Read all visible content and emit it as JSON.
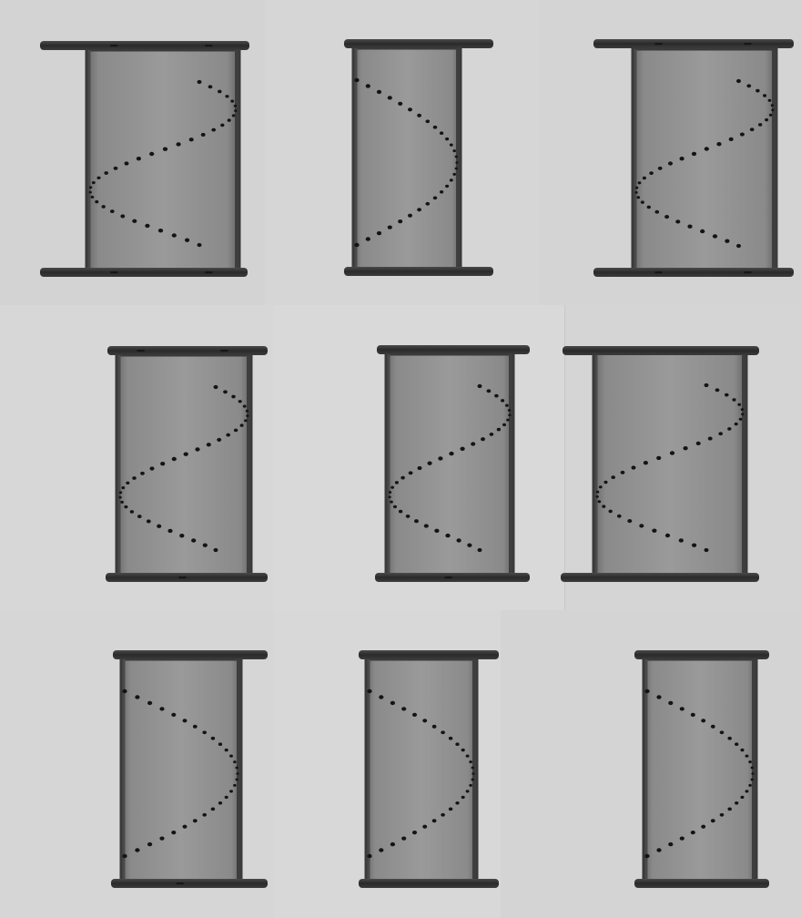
{
  "image": {
    "kind": "radiograph-montage",
    "background_color": "#d5d5d5",
    "specimens": [
      {
        "id": "a",
        "row": 1,
        "column": 1,
        "helix_turns": 1.0,
        "top_marker_dots": 2,
        "bottom_marker_dots": 2,
        "helix_start": "top-right",
        "apex_side": "right"
      },
      {
        "id": "b",
        "row": 1,
        "column": 2,
        "helix_turns": 0.5,
        "top_marker_dots": 0,
        "bottom_marker_dots": 0,
        "helix_start": "top-left",
        "apex_side": "right"
      },
      {
        "id": "c",
        "row": 1,
        "column": 3,
        "helix_turns": 1.0,
        "top_marker_dots": 2,
        "bottom_marker_dots": 2,
        "helix_start": "top-right",
        "apex_side": "right"
      },
      {
        "id": "d",
        "row": 2,
        "column": 1,
        "helix_turns": 1.0,
        "top_marker_dots": 2,
        "bottom_marker_dots": 1,
        "helix_start": "top-right",
        "apex_side": "right"
      },
      {
        "id": "e",
        "row": 2,
        "column": 2,
        "helix_turns": 1.0,
        "top_marker_dots": 0,
        "bottom_marker_dots": 1,
        "helix_start": "top-right",
        "apex_side": "right"
      },
      {
        "id": "f",
        "row": 2,
        "column": 3,
        "helix_turns": 1.0,
        "top_marker_dots": 0,
        "bottom_marker_dots": 0,
        "helix_start": "top-right",
        "apex_side": "right"
      },
      {
        "id": "g",
        "row": 3,
        "column": 1,
        "helix_turns": 0.5,
        "top_marker_dots": 0,
        "bottom_marker_dots": 1,
        "helix_start": "top-left",
        "apex_side": "right"
      },
      {
        "id": "h",
        "row": 3,
        "column": 2,
        "helix_turns": 0.5,
        "top_marker_dots": 0,
        "bottom_marker_dots": 0,
        "helix_start": "top-left",
        "apex_side": "right"
      },
      {
        "id": "i",
        "row": 3,
        "column": 3,
        "helix_turns": 0.5,
        "top_marker_dots": 0,
        "bottom_marker_dots": 0,
        "helix_start": "top-left",
        "apex_side": "right"
      }
    ]
  }
}
